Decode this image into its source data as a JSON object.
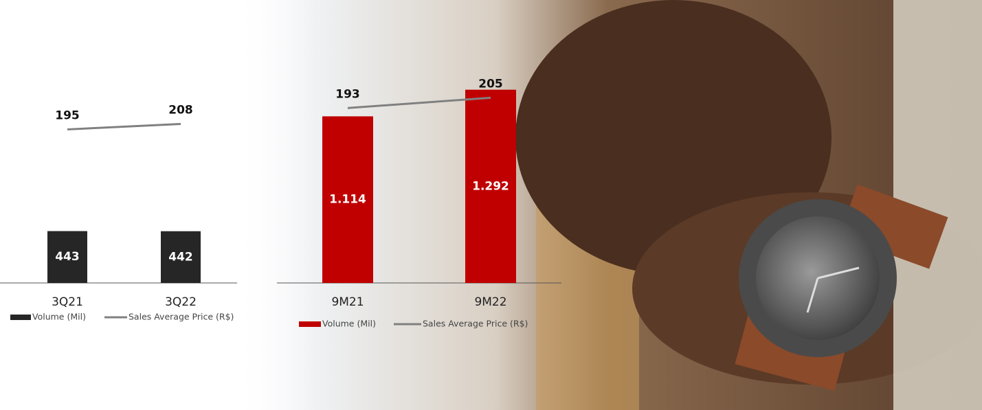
{
  "chart_data": [
    {
      "type": "bar",
      "categories": [
        "3Q21",
        "3Q22"
      ],
      "series": [
        {
          "name": "Volume (Mil)",
          "color": "#262626",
          "values": [
            443,
            442
          ]
        },
        {
          "name": "Sales Average Price (R$)",
          "color": "#808080",
          "values": [
            195,
            208
          ],
          "axis": "y2",
          "kind": "line"
        }
      ],
      "ylim": [
        0,
        2300
      ],
      "y2lim": [
        -170,
        470
      ]
    },
    {
      "type": "bar",
      "categories": [
        "9M21",
        "9M22"
      ],
      "series": [
        {
          "name": "Volume (Mil)",
          "color": "#c00000",
          "values": [
            1114,
            1292
          ],
          "value_labels": [
            "1.114",
            "1.292"
          ]
        },
        {
          "name": "Sales Average Price (R$)",
          "color": "#808080",
          "values": [
            193,
            205
          ],
          "axis": "y2",
          "kind": "line"
        }
      ],
      "ylim": [
        0,
        1800
      ],
      "y2lim": [
        -11,
        303
      ]
    }
  ]
}
